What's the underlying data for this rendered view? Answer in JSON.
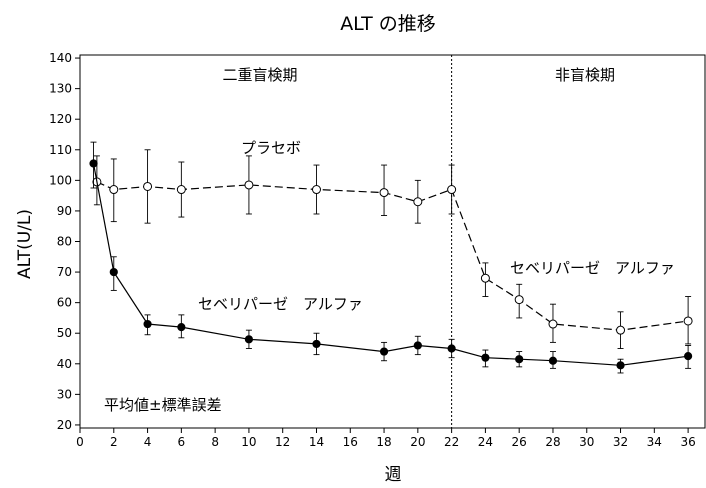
{
  "chart_data": {
    "type": "line",
    "title": "ALT の推移",
    "xlabel": "週",
    "ylabel": "ALT(U/L)",
    "xlim": [
      0,
      37
    ],
    "ylim": [
      19,
      141
    ],
    "xticks": [
      0,
      2,
      4,
      6,
      8,
      10,
      12,
      14,
      16,
      18,
      20,
      22,
      24,
      26,
      28,
      30,
      32,
      34,
      36
    ],
    "yticks": [
      20,
      30,
      40,
      50,
      60,
      70,
      80,
      90,
      100,
      110,
      120,
      130,
      140
    ],
    "period_divider_x": 22,
    "period_labels": [
      "二重盲検期",
      "非盲検期"
    ],
    "annotations": {
      "placebo": "プラセボ",
      "sebelipase_dbl": "セベリパーゼ　アルファ",
      "sebelipase_open": "セベリパーゼ　アルファ",
      "stat_note": "平均値±標準誤差"
    },
    "series": [
      {
        "key": "placebo",
        "style": "dashed",
        "marker": "open-circle",
        "x": [
          1,
          2,
          4,
          6,
          10,
          14,
          18,
          20,
          22,
          24,
          26,
          28,
          32,
          36
        ],
        "y": [
          99.5,
          97,
          98,
          97,
          98.5,
          97,
          96,
          93,
          97,
          68,
          61,
          53,
          51,
          54
        ],
        "err_low": [
          92,
          86.5,
          86,
          88,
          89,
          89,
          88.5,
          86,
          89,
          62,
          55,
          47,
          45,
          46.5
        ],
        "err_high": [
          108,
          107,
          110,
          106,
          108,
          105,
          105,
          100,
          105,
          73,
          66,
          59.5,
          57,
          62
        ]
      },
      {
        "key": "sebelipase",
        "style": "solid",
        "marker": "filled-circle",
        "x": [
          0.8,
          2,
          4,
          6,
          10,
          14,
          18,
          20,
          22,
          24,
          26,
          28,
          32,
          36
        ],
        "y": [
          105.5,
          70,
          53,
          52,
          48,
          46.5,
          44,
          46,
          45,
          42,
          41.5,
          41,
          39.5,
          42.5
        ],
        "err_low": [
          97.5,
          64,
          49.5,
          48.5,
          45,
          43,
          41,
          43,
          42,
          39,
          39,
          38.5,
          37,
          38.5
        ],
        "err_high": [
          112.5,
          75,
          56,
          56,
          51,
          50,
          47,
          49,
          48,
          44.5,
          44,
          44,
          41.5,
          46
        ]
      }
    ]
  }
}
